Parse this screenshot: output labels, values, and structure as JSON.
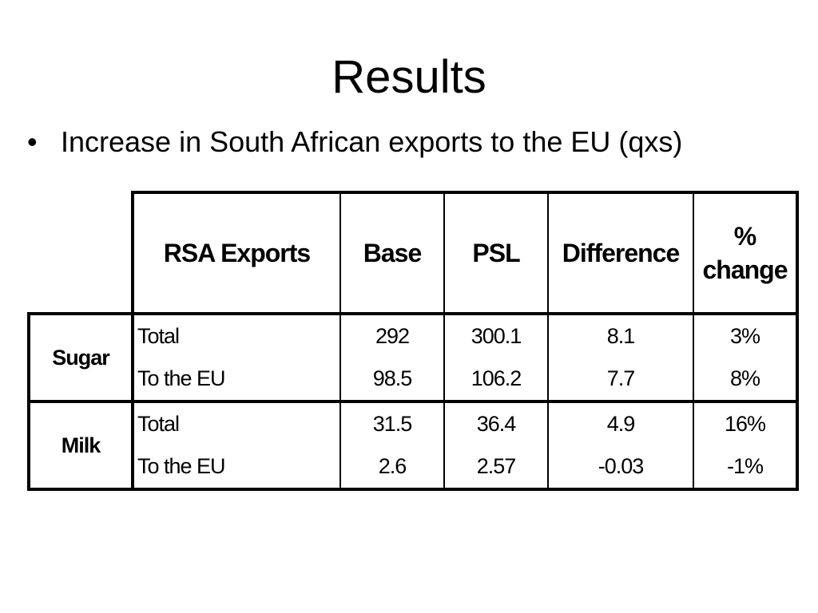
{
  "slide": {
    "title": "Results",
    "bullet": "Increase in South African exports to the EU (qxs)"
  },
  "table": {
    "headers": {
      "exports": "RSA Exports",
      "base": "Base",
      "psl": "PSL",
      "difference": "Difference",
      "pct_line1": "%",
      "pct_line2": "change"
    },
    "groups": [
      {
        "name": "Sugar",
        "rows": [
          {
            "label": "Total",
            "base": "292",
            "psl": "300.1",
            "difference": "8.1",
            "pct": "3%"
          },
          {
            "label": "To the EU",
            "base": "98.5",
            "psl": "106.2",
            "difference": "7.7",
            "pct": "8%"
          }
        ]
      },
      {
        "name": "Milk",
        "rows": [
          {
            "label": "Total",
            "base": "31.5",
            "psl": "36.4",
            "difference": "4.9",
            "pct": "16%"
          },
          {
            "label": "To the EU",
            "base": "2.6",
            "psl": "2.57",
            "difference": "-0.03",
            "pct": "-1%"
          }
        ]
      }
    ]
  }
}
